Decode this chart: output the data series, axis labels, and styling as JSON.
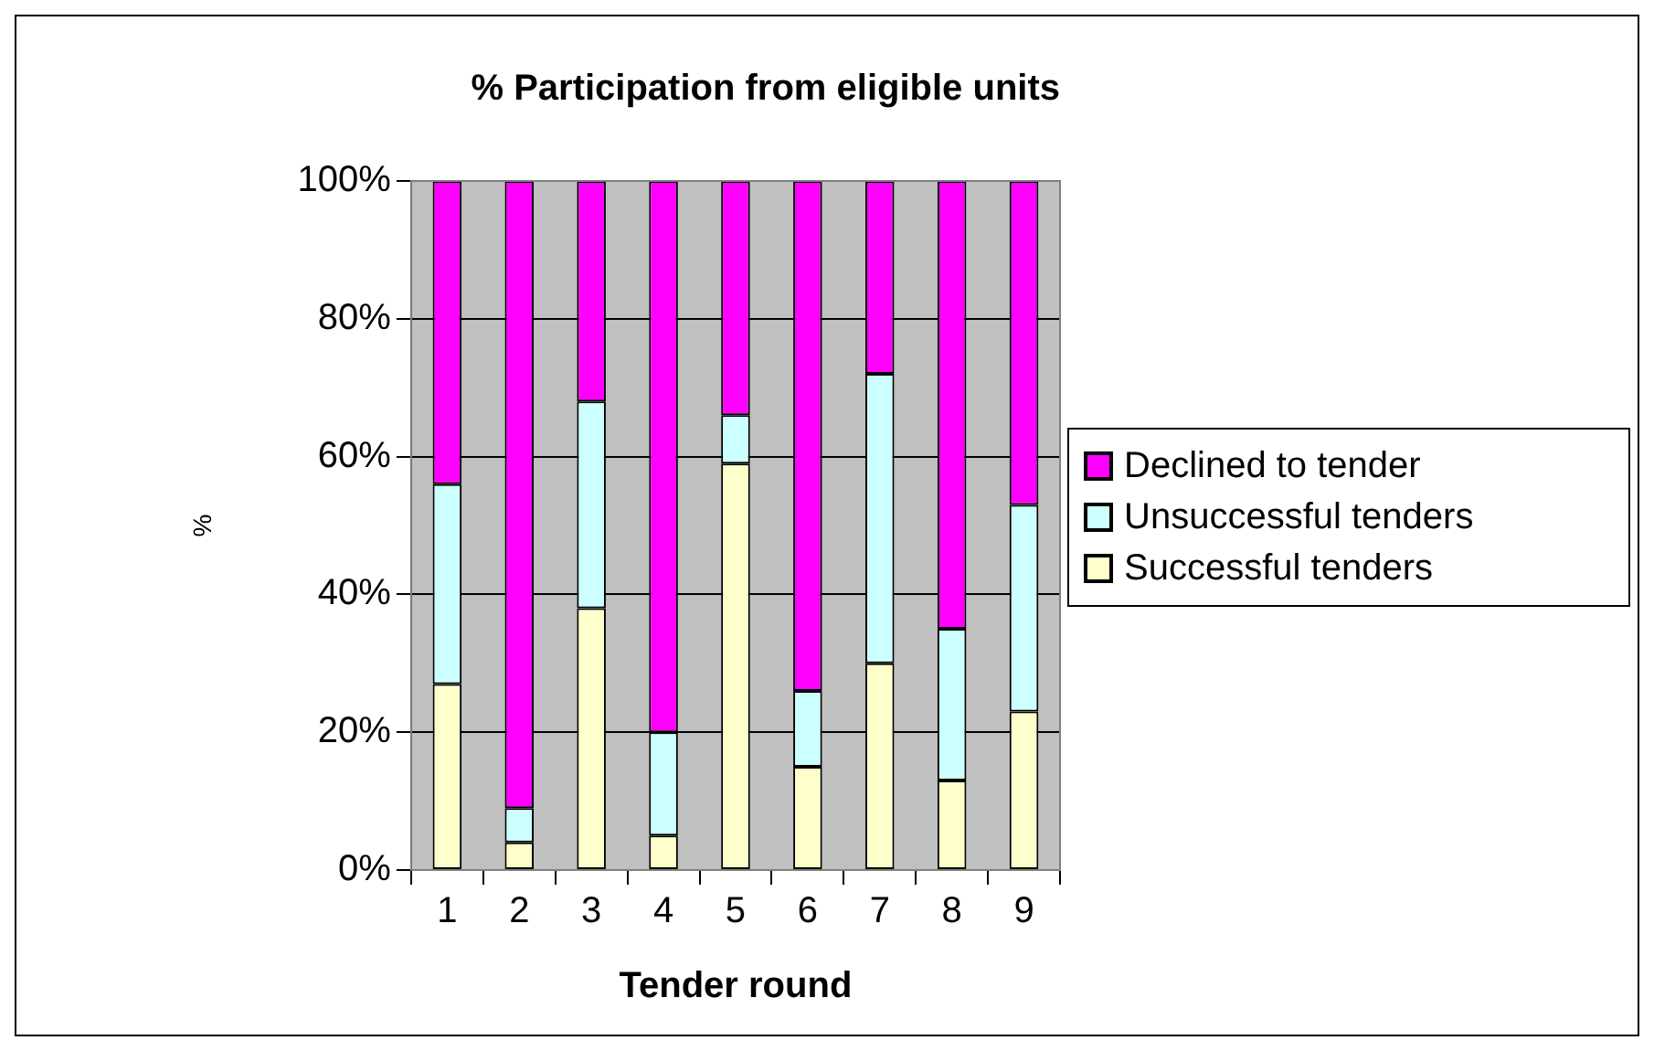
{
  "chart_data": {
    "type": "bar",
    "title": "% Participation from eligible units",
    "xlabel": "Tender round",
    "ylabel": "%",
    "categories": [
      "1",
      "2",
      "3",
      "4",
      "5",
      "6",
      "7",
      "8",
      "9"
    ],
    "stacked": true,
    "series": [
      {
        "name": "Successful tenders",
        "color": "#ffffcc",
        "values": [
          27,
          4,
          38,
          5,
          59,
          15,
          30,
          13,
          23
        ]
      },
      {
        "name": "Unsuccessful tenders",
        "color": "#ccffff",
        "values": [
          29,
          5,
          30,
          15,
          7,
          11,
          42,
          22,
          30
        ]
      },
      {
        "name": "Declined to tender",
        "color": "#ff00ff",
        "values": [
          44,
          91,
          32,
          80,
          34,
          74,
          28,
          65,
          47
        ]
      }
    ],
    "ylim": [
      0,
      100
    ],
    "yticks": [
      {
        "value": 0,
        "label": "0%"
      },
      {
        "value": 20,
        "label": "20%"
      },
      {
        "value": 40,
        "label": "40%"
      },
      {
        "value": 60,
        "label": "60%"
      },
      {
        "value": 80,
        "label": "80%"
      },
      {
        "value": 100,
        "label": "100%"
      }
    ],
    "grid": "y",
    "legend": "right"
  }
}
